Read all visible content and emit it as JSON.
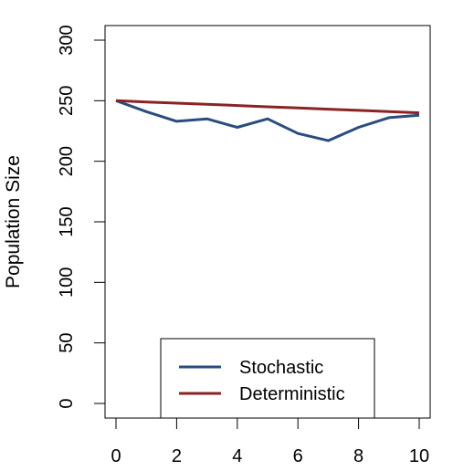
{
  "chart_data": {
    "type": "line",
    "title": "",
    "xlabel": "",
    "ylabel": "Population Size",
    "xlim": [
      0,
      10
    ],
    "ylim": [
      0,
      300
    ],
    "x_ticks": [
      "0",
      "2",
      "4",
      "6",
      "8",
      "10"
    ],
    "y_ticks": [
      "0",
      "50",
      "100",
      "150",
      "200",
      "250",
      "300"
    ],
    "grid": false,
    "legend_position": "bottom-center",
    "x": [
      0,
      1,
      2,
      3,
      4,
      5,
      6,
      7,
      8,
      9,
      10
    ],
    "series": [
      {
        "name": "Stochastic",
        "color": "#2b4c7e",
        "values": [
          250,
          241,
          233,
          235,
          228,
          235,
          223,
          217,
          228,
          236,
          238
        ]
      },
      {
        "name": "Deterministic",
        "color": "#8b2323",
        "values": [
          250,
          249,
          248,
          247,
          246,
          245,
          244,
          243,
          242,
          241,
          240
        ]
      }
    ]
  }
}
